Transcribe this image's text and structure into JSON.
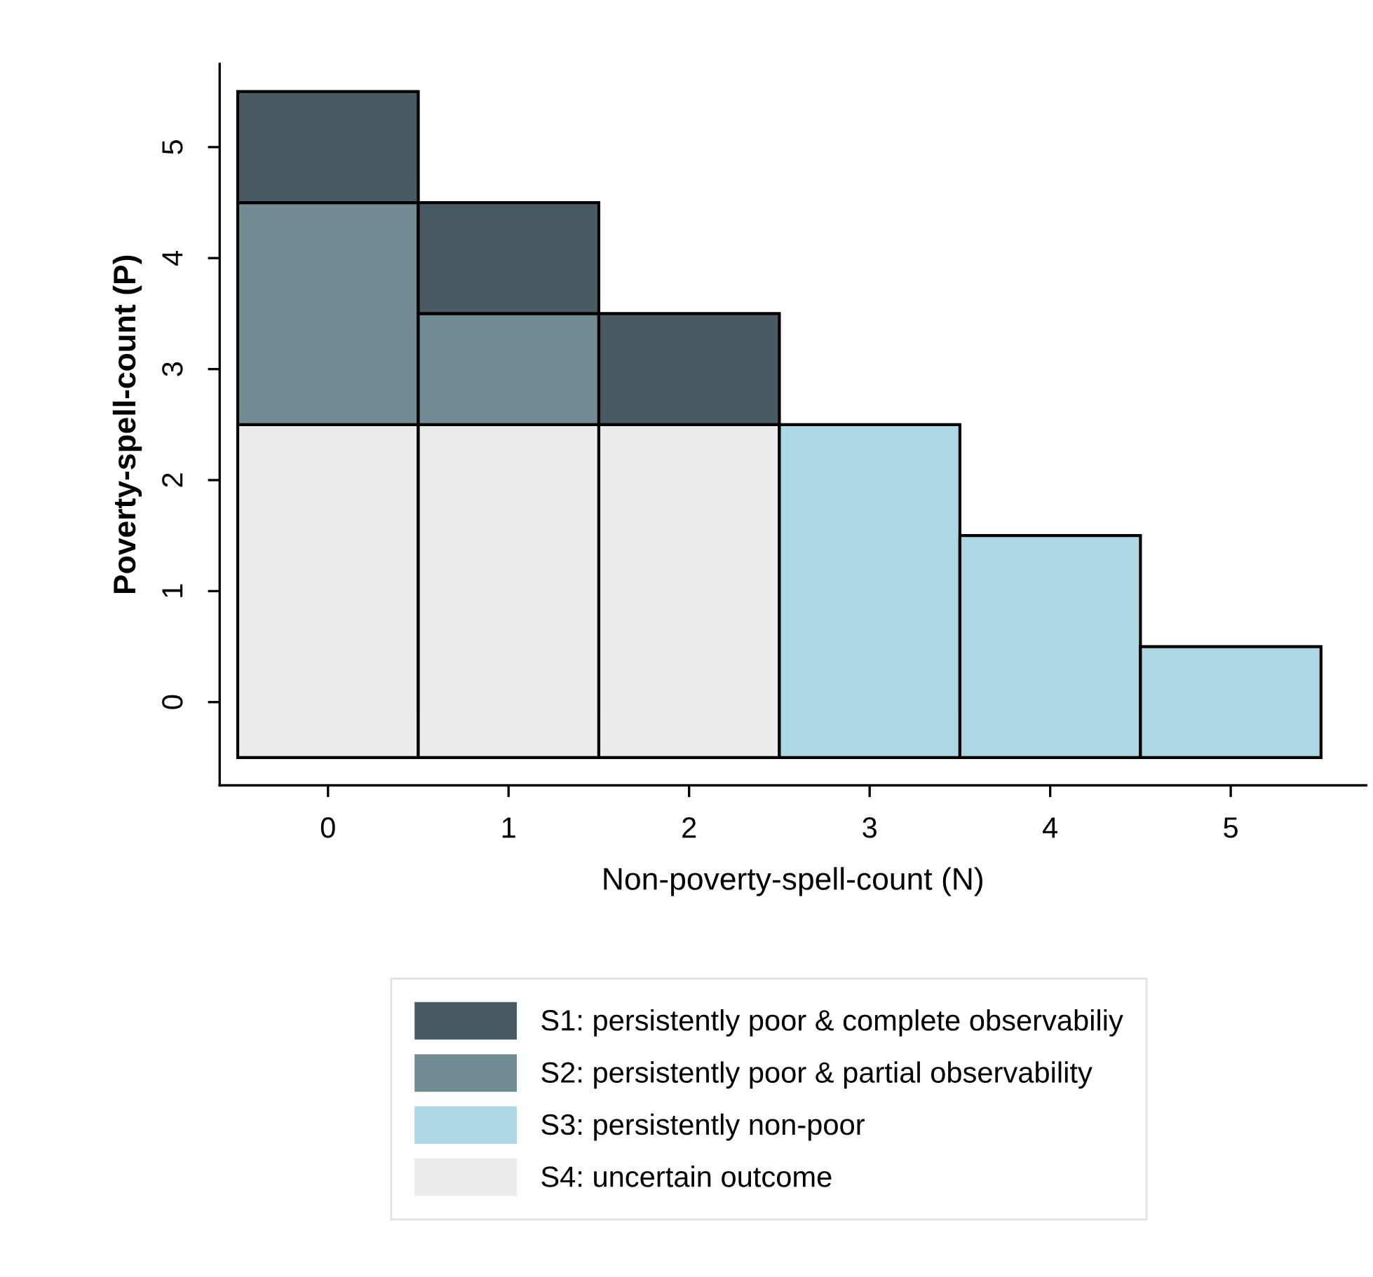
{
  "chart_data": {
    "type": "bar",
    "stacked": true,
    "xlabel": "Non-poverty-spell-count (N)",
    "ylabel": "Poverty-spell-count (P)",
    "x": [
      0,
      1,
      2,
      3,
      4,
      5
    ],
    "series": [
      {
        "name": "S4: uncertain outcome",
        "color": "#ececec",
        "values": [
          3,
          3,
          3,
          0,
          0,
          0
        ]
      },
      {
        "name": "S3: persistently non-poor",
        "color": "#acd8e5",
        "values": [
          0,
          0,
          0,
          3,
          2,
          1
        ]
      },
      {
        "name": "S2: persistently poor & partial observability",
        "color": "#728c93",
        "values": [
          2,
          1,
          0,
          0,
          0,
          0
        ]
      },
      {
        "name": "S1: persistently poor & complete observabiliy",
        "color": "#4a5a63",
        "values": [
          1,
          1,
          1,
          0,
          0,
          0
        ]
      }
    ],
    "xlim": [
      -0.6,
      5.75
    ],
    "ylim": [
      -0.25,
      6.25
    ],
    "xticks": [
      0,
      1,
      2,
      3,
      4,
      5
    ],
    "yticks": [
      {
        "value": 0.5,
        "label": "0"
      },
      {
        "value": 1.5,
        "label": "1"
      },
      {
        "value": 2.5,
        "label": "2"
      },
      {
        "value": 3.5,
        "label": "3"
      },
      {
        "value": 4.5,
        "label": "4"
      },
      {
        "value": 5.5,
        "label": "5"
      }
    ],
    "grid": false,
    "legend": "bottom"
  }
}
